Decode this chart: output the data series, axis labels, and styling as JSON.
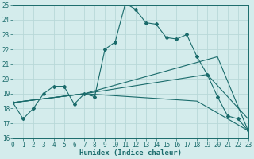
{
  "xlabel": "Humidex (Indice chaleur)",
  "xlim": [
    0,
    23
  ],
  "ylim": [
    16,
    25
  ],
  "background_color": "#d4ecec",
  "grid_color": "#b8d8d8",
  "line_color": "#1a6b6b",
  "main_line": {
    "x": [
      0,
      1,
      2,
      3,
      4,
      5,
      6,
      7,
      8,
      9,
      10,
      11,
      12,
      13,
      14,
      15,
      16,
      17,
      18,
      19,
      20,
      21,
      22,
      23
    ],
    "y": [
      18.4,
      17.3,
      18.0,
      19.0,
      19.5,
      19.5,
      18.3,
      19.0,
      18.8,
      22.0,
      22.5,
      25.1,
      24.7,
      23.8,
      23.7,
      22.8,
      22.7,
      23.0,
      21.5,
      20.3,
      18.8,
      17.5,
      17.3,
      16.5
    ]
  },
  "fan_lines": [
    {
      "x": [
        0,
        7,
        20,
        23
      ],
      "y": [
        18.4,
        19.0,
        21.5,
        16.5
      ]
    },
    {
      "x": [
        0,
        7,
        19,
        23
      ],
      "y": [
        18.4,
        19.0,
        20.3,
        17.3
      ]
    },
    {
      "x": [
        0,
        7,
        18,
        23
      ],
      "y": [
        18.4,
        19.0,
        18.5,
        16.5
      ]
    }
  ],
  "ytick_values": [
    16,
    17,
    18,
    19,
    20,
    21,
    22,
    23,
    24,
    25
  ],
  "xtick_labels": [
    "0",
    "1",
    "2",
    "3",
    "4",
    "5",
    "6",
    "7",
    "8",
    "9",
    "10",
    "11",
    "12",
    "13",
    "14",
    "15",
    "16",
    "17",
    "18",
    "19",
    "20",
    "21",
    "22",
    "23"
  ],
  "tick_fontsize": 5.5,
  "xlabel_fontsize": 6.5,
  "marker": "D",
  "markersize": 2.0,
  "linewidth": 0.8
}
